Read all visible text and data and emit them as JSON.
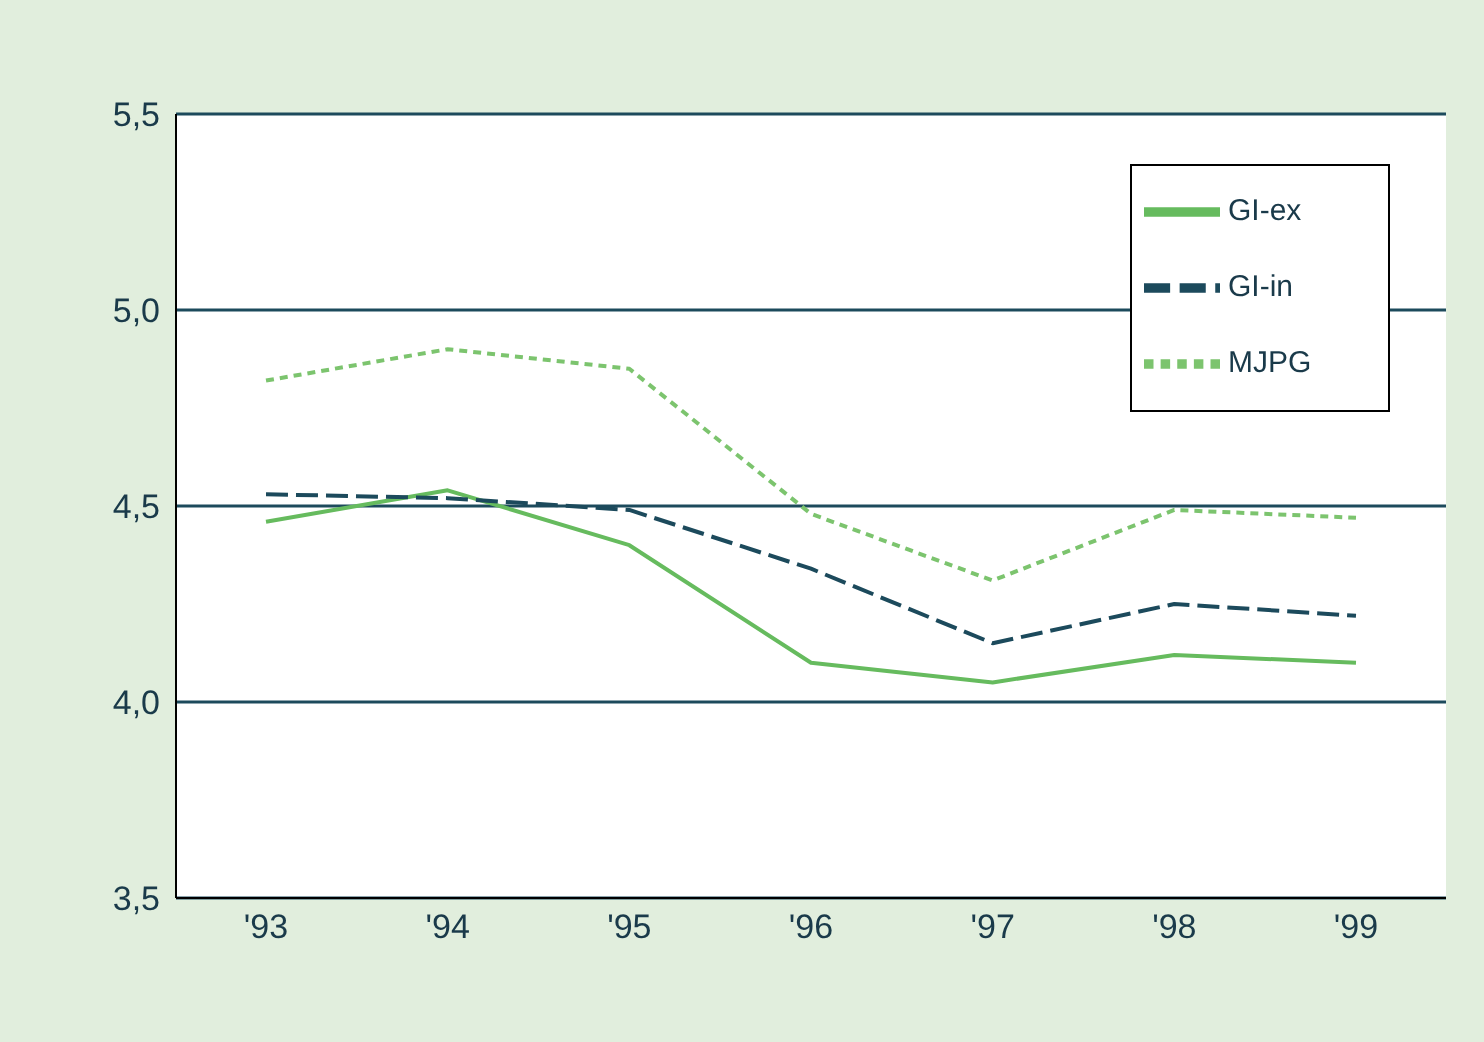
{
  "chart_data": {
    "type": "line",
    "categories": [
      "'93",
      "'94",
      "'95",
      "'96",
      "'97",
      "'98",
      "'99"
    ],
    "series": [
      {
        "name": "GI-ex",
        "color": "#66bb5e",
        "line_style": "solid",
        "values": [
          4.46,
          4.54,
          4.4,
          4.1,
          4.05,
          4.12,
          4.1
        ]
      },
      {
        "name": "GI-in",
        "color": "#1c4a5c",
        "line_style": "dashed",
        "values": [
          4.53,
          4.52,
          4.49,
          4.34,
          4.15,
          4.25,
          4.22
        ]
      },
      {
        "name": "MJPG",
        "color": "#7cc46e",
        "line_style": "dotted",
        "values": [
          4.82,
          4.9,
          4.85,
          4.48,
          4.31,
          4.49,
          4.47
        ]
      }
    ],
    "ylim": [
      3.5,
      5.5
    ],
    "yticks": [
      {
        "value": 3.5,
        "label": "3,5"
      },
      {
        "value": 4.0,
        "label": "4,0"
      },
      {
        "value": 4.5,
        "label": "4,5"
      },
      {
        "value": 5.0,
        "label": "5,0"
      },
      {
        "value": 5.5,
        "label": "5,5"
      }
    ],
    "grid": "y",
    "legend": "top right",
    "marker": "none"
  }
}
